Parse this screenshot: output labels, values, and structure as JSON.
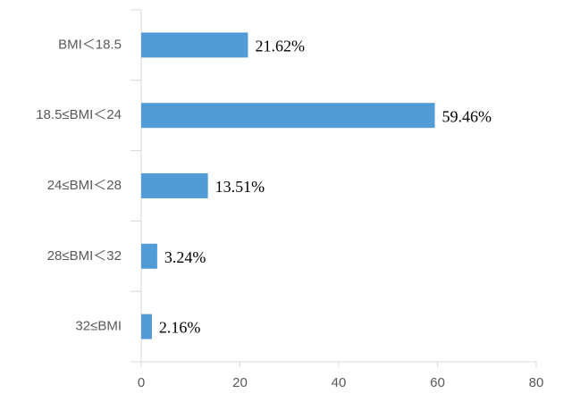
{
  "chart_data": {
    "type": "barh",
    "categories": [
      "BMI＜18.5",
      "18.5≤BMI＜24",
      "24≤BMI＜28",
      "28≤BMI＜32",
      "32≤BMI"
    ],
    "values": [
      21.62,
      59.46,
      13.51,
      3.24,
      2.16
    ],
    "value_labels": [
      "21.62%",
      "59.46%",
      "13.51%",
      "3.24%",
      "2.16%"
    ],
    "color": "#519bd7",
    "xlim": [
      0,
      80
    ],
    "xticks": [
      0,
      20,
      40,
      60,
      80
    ],
    "grid": false
  }
}
